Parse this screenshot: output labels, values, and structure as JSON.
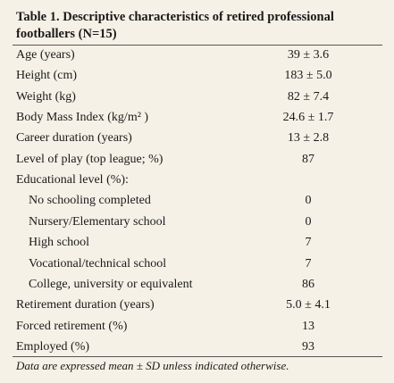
{
  "table": {
    "title": "Table 1. Descriptive characteristics of retired professional footballers (N=15)",
    "rows": [
      {
        "label": "Age (years)",
        "value": "39 ± 3.6"
      },
      {
        "label": "Height (cm)",
        "value": "183 ± 5.0"
      },
      {
        "label": "Weight (kg)",
        "value": "82 ± 7.4"
      },
      {
        "label": "Body Mass Index (kg/m² )",
        "value": "24.6 ± 1.7"
      },
      {
        "label": "Career duration (years)",
        "value": "13 ± 2.8"
      },
      {
        "label": "Level of play (top league; %)",
        "value": "87"
      },
      {
        "label": "Educational level (%):",
        "items": [
          {
            "label": "No schooling completed",
            "value": "0"
          },
          {
            "label": "Nursery/Elementary school",
            "value": "0"
          },
          {
            "label": "High school",
            "value": "7"
          },
          {
            "label": "Vocational/technical school",
            "value": "7"
          },
          {
            "label": "College, university or equivalent",
            "value": "86"
          }
        ]
      },
      {
        "label": "Retirement duration (years)",
        "value": "5.0 ± 4.1"
      },
      {
        "label": "Forced retirement (%)",
        "value": "13"
      },
      {
        "label": "Employed (%)",
        "value": "93"
      }
    ],
    "note": "Data are expressed mean ± SD unless indicated otherwise."
  }
}
